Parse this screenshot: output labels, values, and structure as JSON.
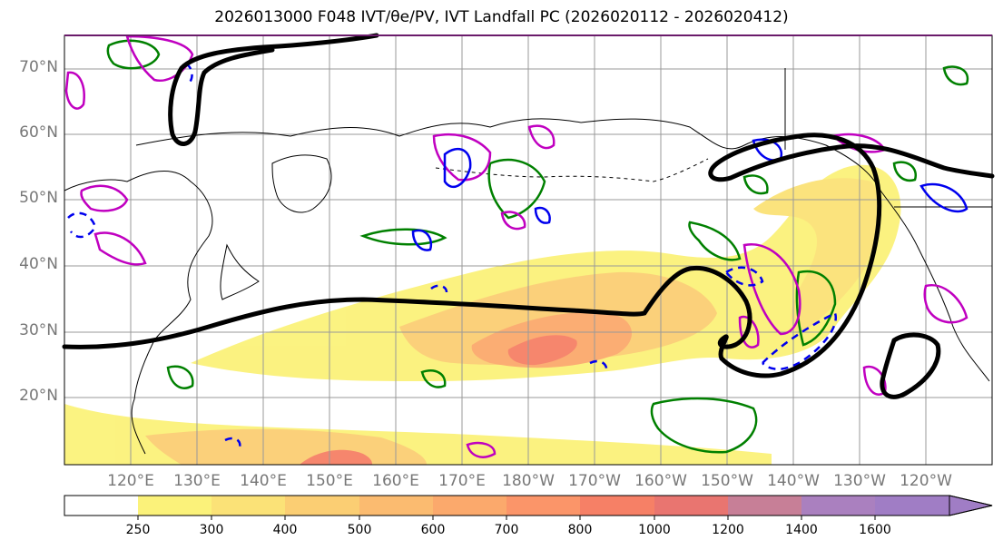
{
  "title": "2026013000 F048 IVT/θe/PV, IVT Landfall PC (2026020112 - 2026020412)",
  "latitude_labels": [
    "70°N",
    "60°N",
    "50°N",
    "40°N",
    "30°N",
    "20°N"
  ],
  "longitude_labels": [
    "120°E",
    "130°E",
    "140°E",
    "150°E",
    "160°E",
    "170°E",
    "180°W",
    "170°W",
    "160°W",
    "150°W",
    "140°W",
    "130°W",
    "120°W"
  ],
  "colorbar": {
    "ticks": [
      "250",
      "300",
      "400",
      "500",
      "600",
      "700",
      "800",
      "1000",
      "1200",
      "1400",
      "1600"
    ],
    "colors": [
      "#ffffff",
      "#fbf27a",
      "#fbe277",
      "#fbce73",
      "#fbbb70",
      "#fba96c",
      "#fb9569",
      "#f68066",
      "#e97570",
      "#c77f97",
      "#aa80bf",
      "#a07dc5"
    ]
  },
  "contour_colors": {
    "ivt_landfall_pc": "#000000",
    "pv": "#008000",
    "theta_e": "#c000c0",
    "dashed": "#0000ee"
  }
}
